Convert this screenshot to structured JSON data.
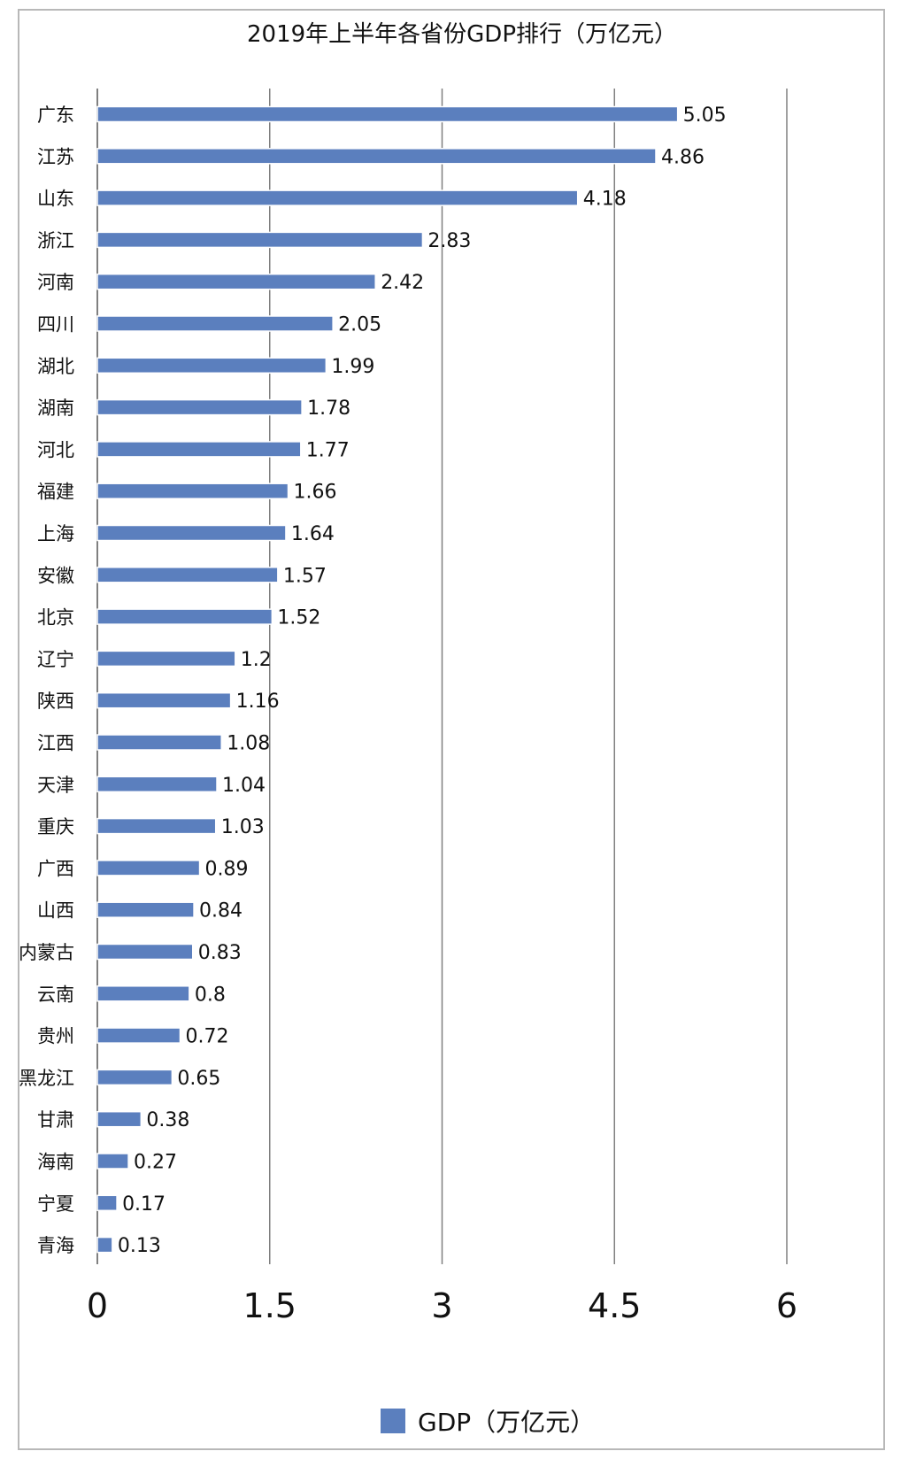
{
  "chart_data": {
    "type": "bar",
    "orientation": "horizontal",
    "title": "2019年上半年各省份GDP排行（万亿元）",
    "categories": [
      "广东",
      "江苏",
      "山东",
      "浙江",
      "河南",
      "四川",
      "湖北",
      "湖南",
      "河北",
      "福建",
      "上海",
      "安徽",
      "北京",
      "辽宁",
      "陕西",
      "江西",
      "天津",
      "重庆",
      "广西",
      "山西",
      "内蒙古",
      "云南",
      "贵州",
      "黑龙江",
      "甘肃",
      "海南",
      "宁夏",
      "青海"
    ],
    "series": [
      {
        "name": "GDP（万亿元）",
        "values": [
          5.05,
          4.86,
          4.18,
          2.83,
          2.42,
          2.05,
          1.99,
          1.78,
          1.77,
          1.66,
          1.64,
          1.57,
          1.52,
          1.2,
          1.16,
          1.08,
          1.04,
          1.03,
          0.89,
          0.84,
          0.83,
          0.8,
          0.72,
          0.65,
          0.38,
          0.27,
          0.17,
          0.13
        ]
      }
    ],
    "data_labels": [
      "5.05",
      "4.86",
      "4.18",
      "2.83",
      "2.42",
      "2.05",
      "1.99",
      "1.78",
      "1.77",
      "1.66",
      "1.64",
      "1.57",
      "1.52",
      "1.2",
      "1.16",
      "1.08",
      "1.04",
      "1.03",
      "0.89",
      "0.84",
      "0.83",
      "0.8",
      "0.72",
      "0.65",
      "0.38",
      "0.27",
      "0.17",
      "0.13"
    ],
    "xlim": [
      0,
      6
    ],
    "x_ticks": [
      "0",
      "1.5",
      "3",
      "4.5",
      "6"
    ],
    "x_tick_values": [
      0,
      1.5,
      3,
      4.5,
      6
    ],
    "grid": "vertical",
    "legend_position": "bottom",
    "colors": {
      "bar": "#5b7fbe",
      "bar_edge": "#ffffff",
      "grid": "#808080",
      "axis": "#808080"
    }
  }
}
